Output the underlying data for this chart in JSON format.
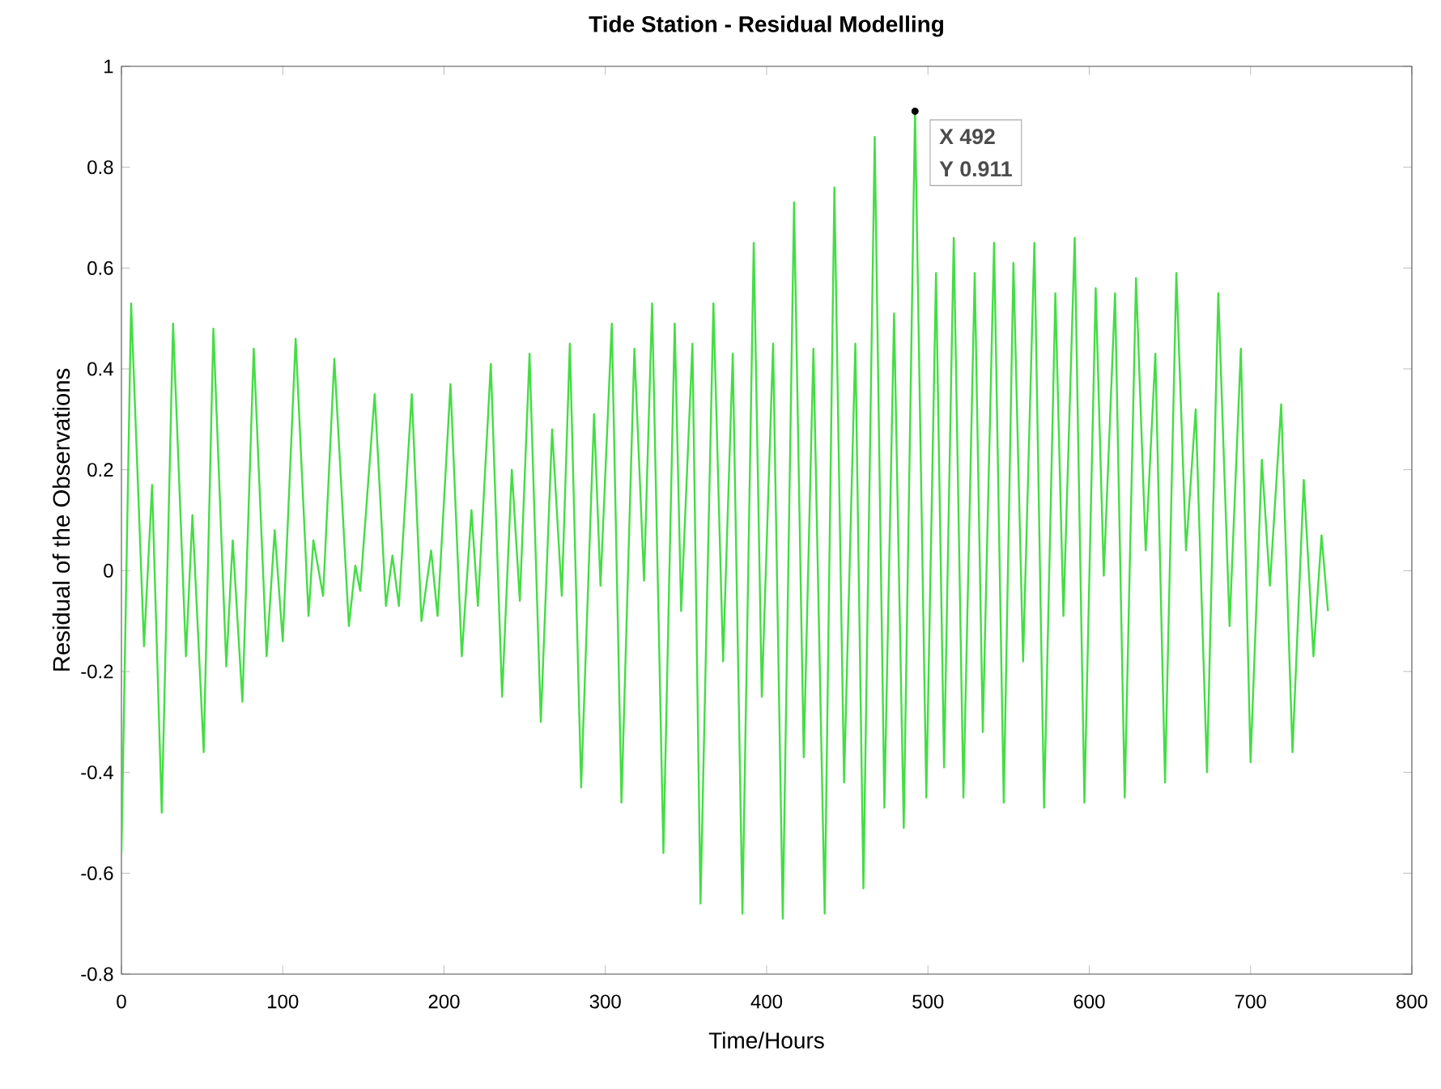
{
  "chart_data": {
    "type": "line",
    "title": "Tide Station - Residual Modelling",
    "xlabel": "Time/Hours",
    "ylabel": "Residual of the Observations",
    "xlim": [
      0,
      800
    ],
    "xticks": [
      0,
      100,
      200,
      300,
      400,
      500,
      600,
      700,
      800
    ],
    "ylim": [
      -0.8,
      1
    ],
    "yticks": [
      -0.8,
      -0.6,
      -0.4,
      -0.2,
      0,
      0.2,
      0.4,
      0.6,
      0.8,
      1
    ],
    "annotations": [
      {
        "text": "X 492",
        "x": 492,
        "y": 0.911
      },
      {
        "text": "Y 0.911",
        "x": 492,
        "y": 0.911
      }
    ],
    "series": [
      {
        "color": "#44dd44",
        "x": [
          0,
          6,
          14,
          19,
          25,
          32,
          40,
          44,
          51,
          57,
          65,
          69,
          75,
          82,
          90,
          95,
          100,
          108,
          116,
          119,
          125,
          132,
          141,
          145,
          148,
          157,
          164,
          168,
          172,
          180,
          186,
          192,
          196,
          204,
          211,
          217,
          221,
          229,
          236,
          242,
          247,
          253,
          260,
          267,
          273,
          278,
          285,
          293,
          297,
          304,
          310,
          318,
          324,
          329,
          336,
          343,
          347,
          354,
          359,
          367,
          373,
          379,
          385,
          392,
          397,
          404,
          410,
          417,
          423,
          429,
          436,
          442,
          448,
          455,
          460,
          467,
          473,
          479,
          485,
          492,
          499,
          505,
          510,
          516,
          522,
          529,
          534,
          541,
          547,
          553,
          559,
          566,
          572,
          579,
          584,
          591,
          597,
          604,
          609,
          616,
          622,
          629,
          635,
          641,
          647,
          654,
          660,
          666,
          673,
          680,
          687,
          694,
          700,
          707,
          712,
          719,
          726,
          733,
          739,
          744,
          748
        ],
        "values": [
          -0.56,
          0.53,
          -0.15,
          0.17,
          -0.48,
          0.49,
          -0.17,
          0.11,
          -0.36,
          0.48,
          -0.19,
          0.06,
          -0.26,
          0.44,
          -0.17,
          0.08,
          -0.14,
          0.46,
          -0.09,
          0.06,
          -0.05,
          0.42,
          -0.11,
          0.01,
          -0.04,
          0.35,
          -0.07,
          0.03,
          -0.07,
          0.35,
          -0.1,
          0.04,
          -0.09,
          0.37,
          -0.17,
          0.12,
          -0.07,
          0.41,
          -0.25,
          0.2,
          -0.06,
          0.43,
          -0.3,
          0.28,
          -0.05,
          0.45,
          -0.43,
          0.31,
          -0.03,
          0.49,
          -0.46,
          0.44,
          -0.02,
          0.53,
          -0.56,
          0.49,
          -0.08,
          0.45,
          -0.66,
          0.53,
          -0.18,
          0.43,
          -0.68,
          0.65,
          -0.25,
          0.45,
          -0.69,
          0.73,
          -0.37,
          0.44,
          -0.68,
          0.76,
          -0.42,
          0.45,
          -0.63,
          0.86,
          -0.47,
          0.51,
          -0.51,
          0.911,
          -0.45,
          0.59,
          -0.39,
          0.66,
          -0.45,
          0.59,
          -0.32,
          0.65,
          -0.46,
          0.61,
          -0.18,
          0.65,
          -0.47,
          0.55,
          -0.09,
          0.66,
          -0.46,
          0.56,
          -0.01,
          0.55,
          -0.45,
          0.58,
          0.04,
          0.43,
          -0.42,
          0.59,
          0.04,
          0.32,
          -0.4,
          0.55,
          -0.11,
          0.44,
          -0.38,
          0.22,
          -0.03,
          0.33,
          -0.36,
          0.18,
          -0.17,
          0.07,
          -0.08
        ]
      }
    ]
  }
}
